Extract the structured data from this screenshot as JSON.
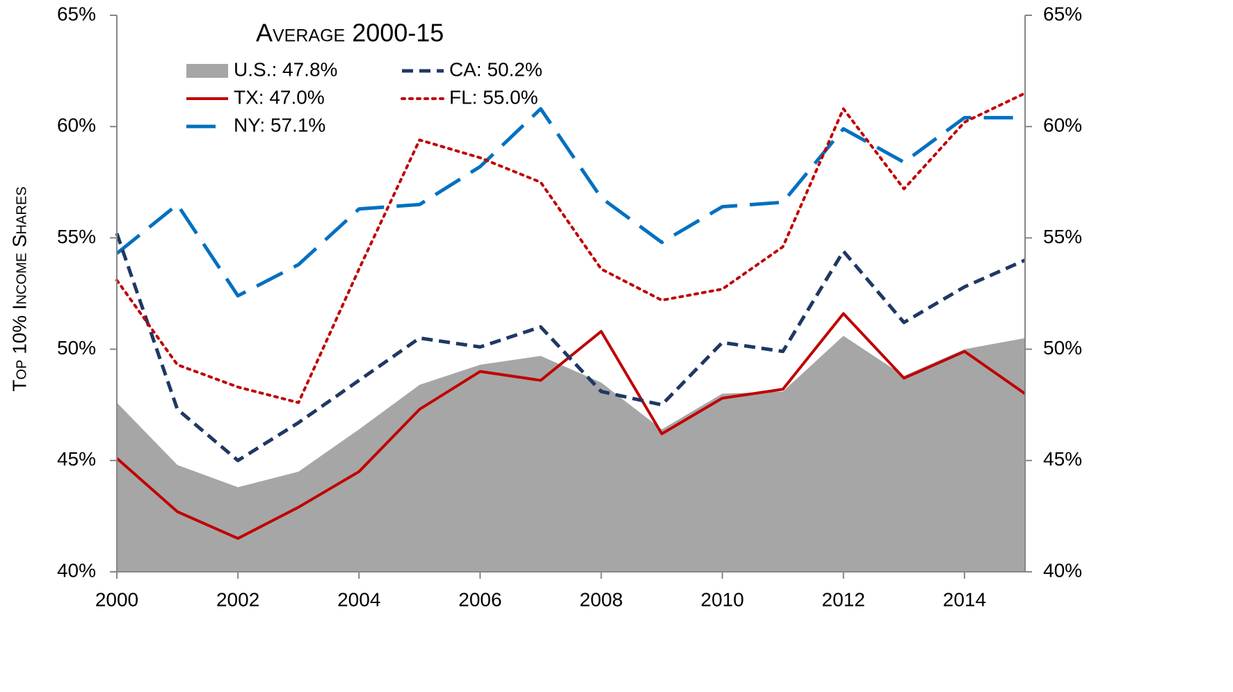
{
  "chart_data": {
    "type": "line",
    "legend_title": "Average 2000-15",
    "y_label": "Top 10% Income Shares",
    "x": [
      2000,
      2001,
      2002,
      2003,
      2004,
      2005,
      2006,
      2007,
      2008,
      2009,
      2010,
      2011,
      2012,
      2013,
      2014,
      2015
    ],
    "xlim": [
      2000,
      2015
    ],
    "xticks": [
      2000,
      2002,
      2004,
      2006,
      2008,
      2010,
      2012,
      2014
    ],
    "ylim": [
      40,
      65
    ],
    "yticks": [
      {
        "value": 40,
        "label": "40%"
      },
      {
        "value": 45,
        "label": "45%"
      },
      {
        "value": 50,
        "label": "50%"
      },
      {
        "value": 55,
        "label": "55%"
      },
      {
        "value": 60,
        "label": "60%"
      },
      {
        "value": 65,
        "label": "65%"
      }
    ],
    "y2lim": [
      40,
      65
    ],
    "y2ticks": [
      {
        "value": 40,
        "label": "40%"
      },
      {
        "value": 45,
        "label": "45%"
      },
      {
        "value": 50,
        "label": "50%"
      },
      {
        "value": 55,
        "label": "55%"
      },
      {
        "value": 60,
        "label": "60%"
      },
      {
        "value": 65,
        "label": "65%"
      }
    ],
    "series": [
      {
        "name": "U.S.: 47.8%",
        "color": "#a6a6a6",
        "style": "area",
        "values": [
          47.6,
          44.8,
          43.8,
          44.5,
          46.4,
          48.4,
          49.3,
          49.7,
          48.5,
          46.4,
          48.0,
          48.1,
          50.6,
          48.8,
          50.0,
          50.5
        ]
      },
      {
        "name": "TX: 47.0%",
        "color": "#c00000",
        "style": "solid",
        "values": [
          45.1,
          42.7,
          41.5,
          42.9,
          44.5,
          47.3,
          49.0,
          48.6,
          50.8,
          46.2,
          47.8,
          48.2,
          51.6,
          48.7,
          49.9,
          48.0
        ]
      },
      {
        "name": "NY: 57.1%",
        "color": "#0070c0",
        "style": "longdash",
        "values": [
          54.3,
          56.5,
          52.4,
          53.8,
          56.3,
          56.5,
          58.2,
          60.8,
          56.8,
          54.8,
          56.4,
          56.6,
          59.9,
          58.4,
          60.4,
          60.4
        ]
      },
      {
        "name": "CA: 50.2%",
        "color": "#1f3864",
        "style": "dashed",
        "values": [
          55.2,
          47.3,
          45.0,
          46.7,
          48.6,
          50.5,
          50.1,
          51.0,
          48.1,
          47.5,
          50.3,
          49.9,
          54.4,
          51.2,
          52.8,
          54.0
        ]
      },
      {
        "name": "FL: 55.0%",
        "color": "#c00000",
        "style": "dotted",
        "values": [
          53.1,
          49.3,
          48.3,
          47.6,
          53.6,
          59.4,
          58.6,
          57.5,
          53.6,
          52.2,
          52.7,
          54.6,
          60.8,
          57.2,
          60.2,
          61.5
        ]
      }
    ]
  }
}
